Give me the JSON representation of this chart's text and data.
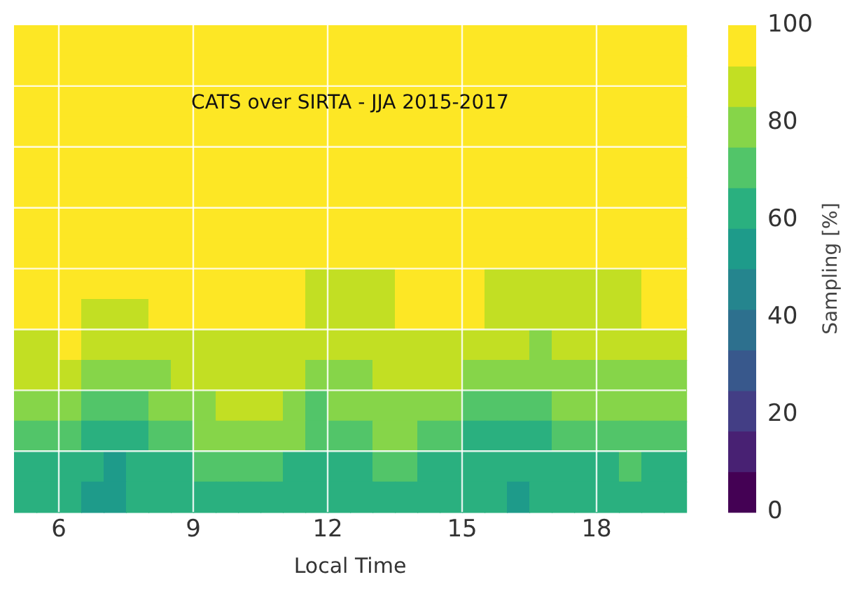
{
  "chart_data": {
    "type": "heatmap",
    "title": "CATS over SIRTA - JJA 2015-2017",
    "xlabel": "Local Time",
    "clabel": "Sampling [%]",
    "x": [
      5.25,
      5.75,
      6.25,
      6.75,
      7.25,
      7.75,
      8.25,
      8.75,
      9.25,
      9.75,
      10.25,
      10.75,
      11.25,
      11.75,
      12.25,
      12.75,
      13.25,
      13.75,
      14.25,
      14.75,
      15.25,
      15.75,
      16.25,
      16.75,
      17.25,
      17.75,
      18.25,
      18.75,
      19.25,
      19.75
    ],
    "xlim": [
      5,
      20
    ],
    "xticks": [
      6,
      9,
      12,
      15,
      18
    ],
    "tick_labels": "x",
    "grid": true,
    "y_categories": [
      null,
      null,
      null,
      null,
      null,
      null,
      null,
      null,
      null,
      null,
      null,
      null,
      null,
      null,
      null,
      null
    ],
    "cells": [
      [
        96,
        96,
        96,
        96,
        96,
        96,
        96,
        96,
        96,
        96,
        96,
        96,
        96,
        96,
        96,
        96,
        96,
        96,
        96,
        96,
        96,
        96,
        96,
        96,
        96,
        96,
        96,
        96,
        96,
        96
      ],
      [
        96,
        96,
        96,
        96,
        96,
        96,
        96,
        96,
        96,
        96,
        96,
        96,
        96,
        96,
        96,
        96,
        96,
        96,
        96,
        96,
        96,
        96,
        96,
        96,
        96,
        96,
        96,
        96,
        96,
        96
      ],
      [
        96,
        96,
        96,
        96,
        96,
        96,
        96,
        96,
        96,
        96,
        96,
        96,
        96,
        96,
        96,
        96,
        96,
        96,
        96,
        96,
        96,
        96,
        96,
        96,
        96,
        96,
        96,
        96,
        96,
        96
      ],
      [
        96,
        96,
        96,
        96,
        96,
        96,
        96,
        96,
        96,
        96,
        96,
        96,
        96,
        96,
        96,
        96,
        96,
        96,
        96,
        96,
        96,
        96,
        96,
        96,
        96,
        96,
        96,
        96,
        96,
        96
      ],
      [
        96,
        96,
        96,
        96,
        96,
        96,
        96,
        96,
        96,
        96,
        96,
        96,
        96,
        96,
        96,
        96,
        96,
        96,
        96,
        96,
        96,
        96,
        96,
        96,
        96,
        96,
        96,
        96,
        96,
        96
      ],
      [
        96,
        96,
        96,
        96,
        96,
        96,
        96,
        96,
        96,
        96,
        96,
        96,
        96,
        96,
        96,
        96,
        96,
        96,
        96,
        96,
        96,
        96,
        96,
        96,
        96,
        96,
        96,
        96,
        96,
        96
      ],
      [
        96,
        96,
        96,
        96,
        96,
        96,
        96,
        96,
        96,
        96,
        96,
        96,
        96,
        96,
        96,
        96,
        96,
        96,
        96,
        96,
        96,
        96,
        96,
        96,
        96,
        96,
        96,
        96,
        96,
        96
      ],
      [
        96,
        96,
        96,
        96,
        96,
        96,
        96,
        96,
        96,
        96,
        96,
        96,
        96,
        96,
        96,
        96,
        96,
        96,
        96,
        96,
        96,
        96,
        96,
        96,
        96,
        96,
        96,
        96,
        96,
        96
      ],
      [
        96,
        96,
        96,
        96,
        96,
        96,
        96,
        96,
        96,
        96,
        96,
        96,
        96,
        88,
        88,
        88,
        88,
        96,
        96,
        96,
        96,
        88,
        88,
        88,
        88,
        88,
        88,
        88,
        96,
        96
      ],
      [
        96,
        96,
        96,
        88,
        88,
        88,
        96,
        96,
        96,
        96,
        96,
        96,
        96,
        88,
        88,
        88,
        88,
        96,
        96,
        96,
        96,
        88,
        88,
        88,
        88,
        88,
        88,
        88,
        96,
        96
      ],
      [
        88,
        88,
        96,
        88,
        88,
        88,
        88,
        88,
        88,
        88,
        88,
        88,
        88,
        88,
        88,
        88,
        88,
        88,
        88,
        88,
        88,
        88,
        88,
        79,
        88,
        88,
        88,
        88,
        88,
        88
      ],
      [
        88,
        88,
        88,
        79,
        79,
        79,
        79,
        88,
        88,
        88,
        88,
        88,
        88,
        79,
        79,
        79,
        88,
        88,
        88,
        88,
        79,
        79,
        79,
        79,
        79,
        79,
        79,
        79,
        79,
        79
      ],
      [
        79,
        79,
        79,
        71,
        71,
        71,
        79,
        79,
        79,
        88,
        88,
        88,
        79,
        71,
        79,
        79,
        79,
        79,
        79,
        79,
        71,
        71,
        71,
        71,
        79,
        79,
        79,
        79,
        79,
        79
      ],
      [
        71,
        71,
        71,
        63,
        63,
        63,
        71,
        71,
        79,
        79,
        79,
        79,
        79,
        71,
        71,
        71,
        79,
        79,
        71,
        71,
        63,
        63,
        63,
        63,
        71,
        71,
        71,
        71,
        71,
        71
      ],
      [
        63,
        63,
        63,
        63,
        54,
        63,
        63,
        63,
        71,
        71,
        71,
        71,
        63,
        63,
        63,
        63,
        71,
        71,
        63,
        63,
        63,
        63,
        63,
        63,
        63,
        63,
        63,
        71,
        63,
        63
      ],
      [
        63,
        63,
        63,
        54,
        54,
        63,
        63,
        63,
        63,
        63,
        63,
        63,
        63,
        63,
        63,
        63,
        63,
        63,
        63,
        63,
        63,
        63,
        54,
        63,
        63,
        63,
        63,
        63,
        63,
        63
      ]
    ],
    "clim": [
      0,
      100
    ],
    "cticks": [
      0,
      20,
      40,
      60,
      80,
      100
    ]
  }
}
